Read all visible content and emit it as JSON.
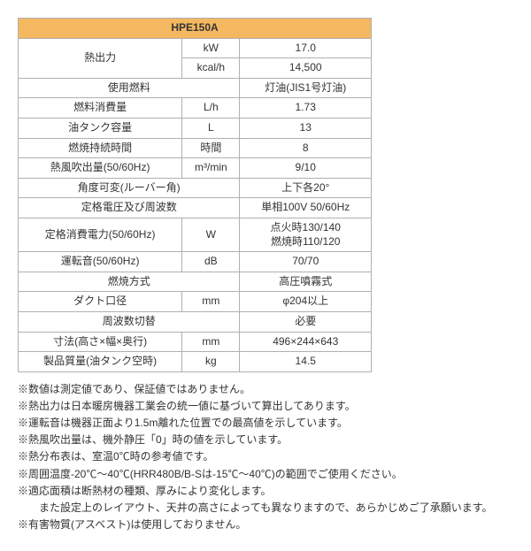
{
  "header": {
    "model": "HPE150A"
  },
  "rows": {
    "heat_output_label": "熱出力",
    "heat_output_unit1": "kW",
    "heat_output_val1": "17.0",
    "heat_output_unit2": "kcal/h",
    "heat_output_val2": "14,500",
    "fuel_label": "使用燃料",
    "fuel_val": "灯油(JIS1号灯油)",
    "fuel_consumption_label": "燃料消費量",
    "fuel_consumption_unit": "L/h",
    "fuel_consumption_val": "1.73",
    "tank_capacity_label": "油タンク容量",
    "tank_capacity_unit": "L",
    "tank_capacity_val": "13",
    "burn_duration_label": "燃焼持続時間",
    "burn_duration_unit": "時間",
    "burn_duration_val": "8",
    "airflow_label": "熱風吹出量(50/60Hz)",
    "airflow_unit": "m³/min",
    "airflow_val": "9/10",
    "louver_label": "角度可変(ルーバー角)",
    "louver_val": "上下各20°",
    "rated_voltage_label": "定格電圧及び周波数",
    "rated_voltage_val": "単相100V 50/60Hz",
    "rated_power_label": "定格消費電力(50/60Hz)",
    "rated_power_unit": "W",
    "rated_power_val1": "点火時130/140",
    "rated_power_val2": "燃焼時110/120",
    "noise_label": "運転音(50/60Hz)",
    "noise_unit": "dB",
    "noise_val": "70/70",
    "combustion_label": "燃焼方式",
    "combustion_val": "高圧噴霧式",
    "duct_label": "ダクト口径",
    "duct_unit": "mm",
    "duct_val": "φ204以上",
    "freq_switch_label": "周波数切替",
    "freq_switch_val": "必要",
    "dimensions_label": "寸法(高さ×幅×奥行)",
    "dimensions_unit": "mm",
    "dimensions_val": "496×244×643",
    "mass_label": "製品質量(油タンク空時)",
    "mass_unit": "kg",
    "mass_val": "14.5"
  },
  "notes": {
    "n1": "※数値は測定値であり、保証値ではありません。",
    "n2": "※熱出力は日本暖房機器工業会の統一値に基づいて算出してあります。",
    "n3": "※運転音は機器正面より1.5m離れた位置での最高値を示しています。",
    "n4": "※熱風吹出量は、機外静圧「0」時の値を示しています。",
    "n5": "※熱分布表は、室温0℃時の参考値です。",
    "n6": "※周囲温度-20℃～40℃(HRR480B/B-Sは-15℃～40℃)の範囲でご使用ください。",
    "n7": "※適応面積は断熱材の種類、厚みにより変化します。",
    "n8": "　また設定上のレイアウト、天井の高さによっても異なりますので、あらかじめご了承願います。",
    "n9": "※有害物質(アスベスト)は使用しておりません。"
  }
}
